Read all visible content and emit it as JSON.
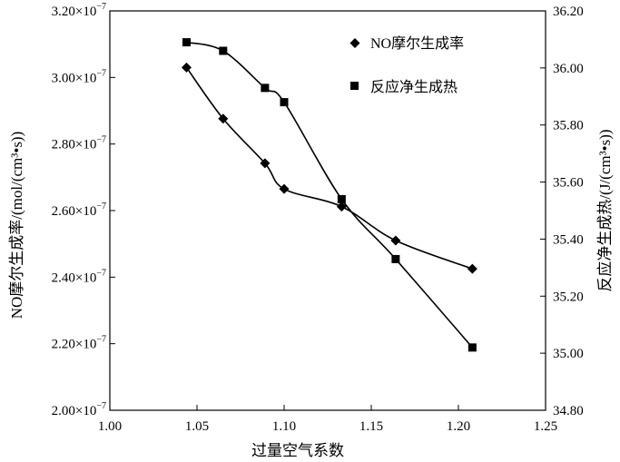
{
  "chart_data": {
    "type": "line",
    "xlabel": "过量空气系数",
    "ylabel_left": "NO摩尔生成率/(mol/(cm³•s))",
    "ylabel_right": "反应净生成热/(J/(cm³•s))",
    "xlim": [
      1.0,
      1.25
    ],
    "ylim_left": [
      2e-07,
      3.2e-07
    ],
    "ylim_right": [
      34.8,
      36.2
    ],
    "x_ticks": [
      "1.00",
      "1.05",
      "1.10",
      "1.15",
      "1.20",
      "1.25"
    ],
    "y_left_ticks": [
      {
        "mantissa": "2.00",
        "times": "×10",
        "exp": "−7"
      },
      {
        "mantissa": "2.20",
        "times": "×10",
        "exp": "−7"
      },
      {
        "mantissa": "2.40",
        "times": "×10",
        "exp": "−7"
      },
      {
        "mantissa": "2.60",
        "times": "×10",
        "exp": "−7"
      },
      {
        "mantissa": "2.80",
        "times": "×10",
        "exp": "−7"
      },
      {
        "mantissa": "3.00",
        "times": "×10",
        "exp": "−7"
      },
      {
        "mantissa": "3.20",
        "times": "×10",
        "exp": "−7"
      }
    ],
    "y_right_ticks": [
      "34.80",
      "35.00",
      "35.20",
      "35.40",
      "35.60",
      "35.80",
      "36.00",
      "36.20"
    ],
    "legend_position": "top-right",
    "series": [
      {
        "name": "NO摩尔生成率",
        "axis": "left",
        "marker": "diamond",
        "x": [
          1.044,
          1.065,
          1.089,
          1.1,
          1.133,
          1.164,
          1.208
        ],
        "y": [
          3.03e-07,
          2.876e-07,
          2.742e-07,
          2.665e-07,
          2.612e-07,
          2.51e-07,
          2.425e-07
        ]
      },
      {
        "name": "反应净生成热",
        "axis": "right",
        "marker": "square",
        "x": [
          1.044,
          1.065,
          1.089,
          1.1,
          1.133,
          1.164,
          1.208
        ],
        "y": [
          36.09,
          36.06,
          35.93,
          35.88,
          35.54,
          35.33,
          35.02
        ]
      }
    ]
  }
}
